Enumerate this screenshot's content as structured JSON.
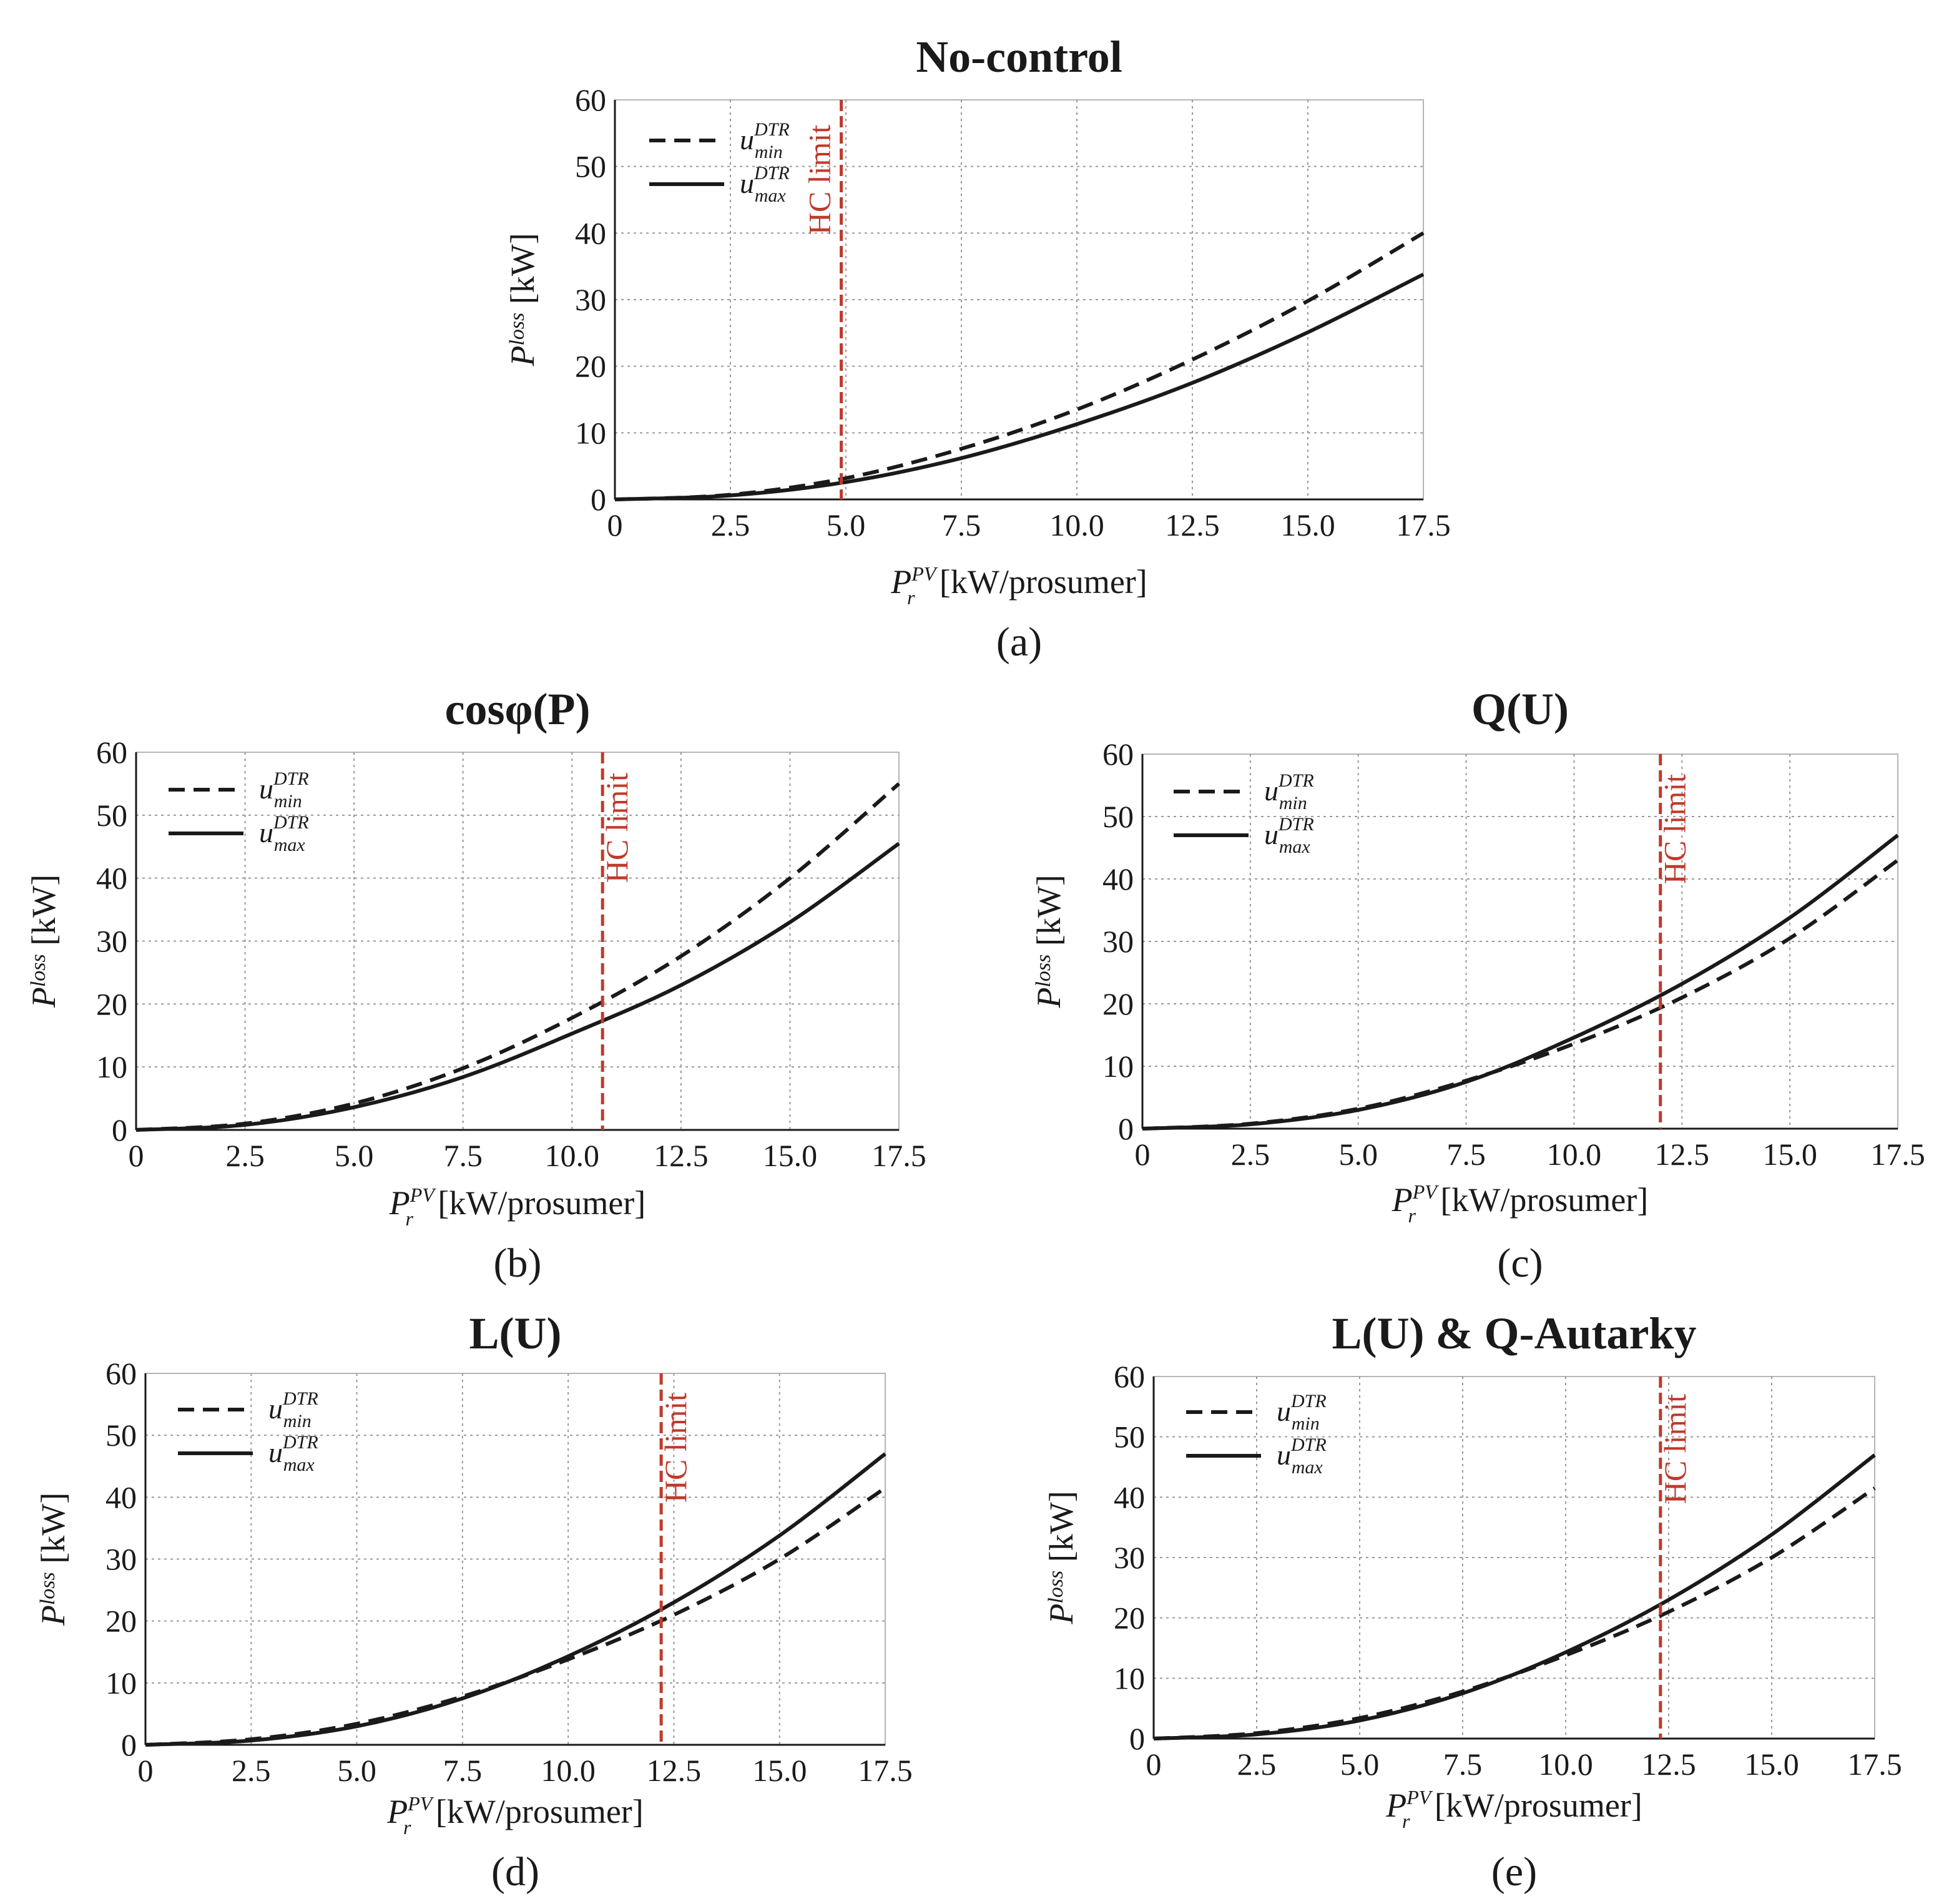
{
  "figure": {
    "x_label": "[kW/prosumer]",
    "x_label_symbol": "P",
    "x_label_sub": "r",
    "x_label_sup": "PV",
    "y_label": "[kW]",
    "y_label_symbol": "P",
    "y_label_sup": "loss",
    "legend_symbol": "u",
    "legend_sup": "DTR",
    "hc_label": "HC limit",
    "colors": {
      "hc": "#c0392b",
      "curve": "#1a1a1a",
      "grid": "#9a9a9a"
    }
  },
  "chart_data": [
    {
      "id": "a",
      "type": "line",
      "title": "No-control",
      "caption": "(a)",
      "x_ticks": [
        "0",
        "2.5",
        "5.0",
        "7.5",
        "10.0",
        "12.5",
        "15.0",
        "17.5"
      ],
      "y_ticks": [
        "0",
        "10",
        "20",
        "30",
        "40",
        "50",
        "60"
      ],
      "xlim": [
        0,
        17.5
      ],
      "ylim": [
        0,
        60
      ],
      "hc_limit": 4.9,
      "series": [
        {
          "name": "u_min^DTR",
          "style": "dashed",
          "sub": "min",
          "x": [
            0,
            2.5,
            5.0,
            7.5,
            10.0,
            12.5,
            15.0,
            17.5
          ],
          "y": [
            0,
            0.7,
            3.2,
            7.6,
            13.5,
            21.0,
            29.8,
            40.0
          ]
        },
        {
          "name": "u_max^DTR",
          "style": "solid",
          "sub": "max",
          "x": [
            0,
            2.5,
            5.0,
            7.5,
            10.0,
            12.5,
            15.0,
            17.5
          ],
          "y": [
            0,
            0.6,
            2.6,
            6.2,
            11.3,
            17.5,
            25.1,
            33.8
          ]
        }
      ]
    },
    {
      "id": "b",
      "type": "line",
      "title": "cosφ(P)",
      "caption": "(b)",
      "x_ticks": [
        "0",
        "2.5",
        "5.0",
        "7.5",
        "10.0",
        "12.5",
        "15.0",
        "17.5"
      ],
      "y_ticks": [
        "0",
        "10",
        "20",
        "30",
        "40",
        "50",
        "60"
      ],
      "xlim": [
        0,
        17.5
      ],
      "ylim": [
        0,
        60
      ],
      "hc_limit": 10.7,
      "series": [
        {
          "name": "u_min^DTR",
          "style": "dashed",
          "sub": "min",
          "x": [
            0,
            2.5,
            5.0,
            7.5,
            10.0,
            12.5,
            15.0,
            17.5
          ],
          "y": [
            0,
            1.0,
            4.2,
            9.8,
            17.8,
            27.6,
            40.0,
            55.0
          ]
        },
        {
          "name": "u_max^DTR",
          "style": "solid",
          "sub": "max",
          "x": [
            0,
            2.5,
            5.0,
            7.5,
            10.0,
            12.5,
            15.0,
            17.5
          ],
          "y": [
            0,
            0.8,
            3.6,
            8.4,
            15.3,
            23.0,
            33.0,
            45.5
          ]
        }
      ]
    },
    {
      "id": "c",
      "type": "line",
      "title": "Q(U)",
      "caption": "(c)",
      "x_ticks": [
        "0",
        "2.5",
        "5.0",
        "7.5",
        "10.0",
        "12.5",
        "15.0",
        "17.5"
      ],
      "y_ticks": [
        "0",
        "10",
        "20",
        "30",
        "40",
        "50",
        "60"
      ],
      "xlim": [
        0,
        17.5
      ],
      "ylim": [
        0,
        60
      ],
      "hc_limit": 12.0,
      "series": [
        {
          "name": "u_min^DTR",
          "style": "dashed",
          "sub": "min",
          "x": [
            0,
            2.5,
            5.0,
            7.5,
            10.0,
            12.5,
            15.0,
            17.5
          ],
          "y": [
            0,
            0.8,
            3.2,
            7.7,
            13.6,
            21.0,
            30.5,
            43.0
          ]
        },
        {
          "name": "u_max^DTR",
          "style": "solid",
          "sub": "max",
          "x": [
            0,
            2.5,
            5.0,
            7.5,
            10.0,
            12.5,
            15.0,
            17.5
          ],
          "y": [
            0,
            0.7,
            3.0,
            7.5,
            14.6,
            23.2,
            33.8,
            47.0
          ]
        }
      ]
    },
    {
      "id": "d",
      "type": "line",
      "title": "L(U)",
      "caption": "(d)",
      "x_ticks": [
        "0",
        "2.5",
        "5.0",
        "7.5",
        "10.0",
        "12.5",
        "15.0",
        "17.5"
      ],
      "y_ticks": [
        "0",
        "10",
        "20",
        "30",
        "40",
        "50",
        "60"
      ],
      "xlim": [
        0,
        17.5
      ],
      "ylim": [
        0,
        60
      ],
      "hc_limit": 12.2,
      "series": [
        {
          "name": "u_min^DTR",
          "style": "dashed",
          "sub": "min",
          "x": [
            0,
            2.5,
            5.0,
            7.5,
            10.0,
            12.5,
            15.0,
            17.5
          ],
          "y": [
            0,
            0.9,
            3.4,
            7.8,
            13.8,
            21.0,
            30.0,
            41.5
          ]
        },
        {
          "name": "u_max^DTR",
          "style": "solid",
          "sub": "max",
          "x": [
            0,
            2.5,
            5.0,
            7.5,
            10.0,
            12.5,
            15.0,
            17.5
          ],
          "y": [
            0,
            0.7,
            3.0,
            7.5,
            14.3,
            23.0,
            33.8,
            47.0
          ]
        }
      ]
    },
    {
      "id": "e",
      "type": "line",
      "title": "L(U) & Q-Autarky",
      "caption": "(e)",
      "x_ticks": [
        "0",
        "2.5",
        "5.0",
        "7.5",
        "10.0",
        "12.5",
        "15.0",
        "17.5"
      ],
      "y_ticks": [
        "0",
        "10",
        "20",
        "30",
        "40",
        "50",
        "60"
      ],
      "xlim": [
        0,
        17.5
      ],
      "ylim": [
        0,
        60
      ],
      "hc_limit": 12.3,
      "series": [
        {
          "name": "u_min^DTR",
          "style": "dashed",
          "sub": "min",
          "x": [
            0,
            2.5,
            5.0,
            7.5,
            10.0,
            12.5,
            15.0,
            17.5
          ],
          "y": [
            0,
            0.9,
            3.4,
            7.8,
            13.8,
            21.0,
            30.0,
            41.5
          ]
        },
        {
          "name": "u_max^DTR",
          "style": "solid",
          "sub": "max",
          "x": [
            0,
            2.5,
            5.0,
            7.5,
            10.0,
            12.5,
            15.0,
            17.5
          ],
          "y": [
            0,
            0.7,
            3.0,
            7.5,
            14.3,
            23.0,
            33.8,
            47.0
          ]
        }
      ]
    }
  ]
}
